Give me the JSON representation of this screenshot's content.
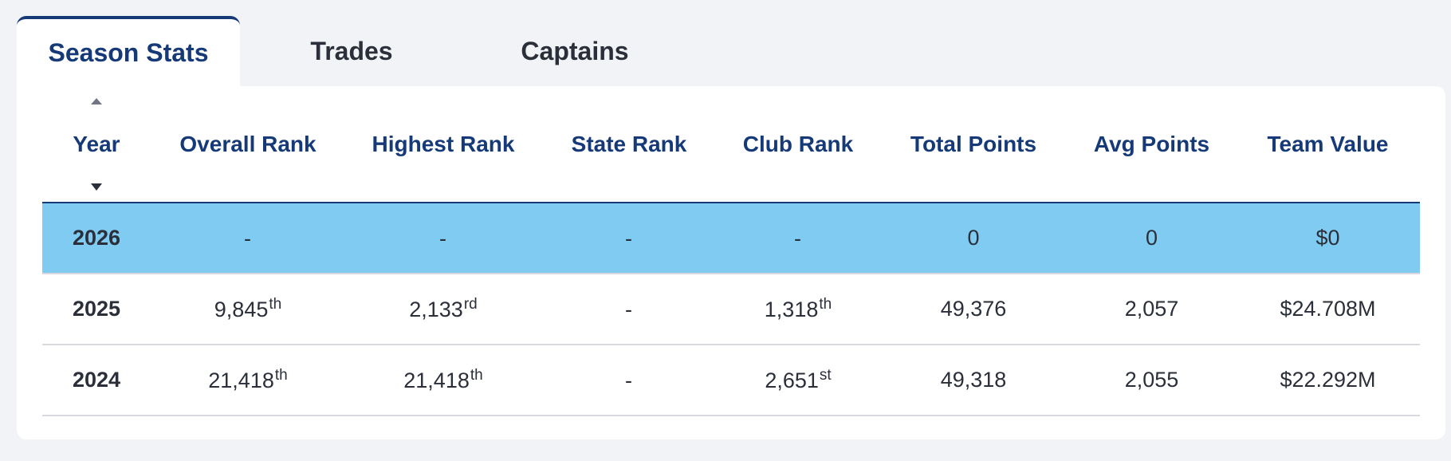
{
  "tabs": [
    {
      "label": "Season Stats",
      "active": true
    },
    {
      "label": "Trades",
      "active": false
    },
    {
      "label": "Captains",
      "active": false
    }
  ],
  "table": {
    "headers": [
      "Year",
      "Overall Rank",
      "Highest Rank",
      "State Rank",
      "Club Rank",
      "Total Points",
      "Avg Points",
      "Team Value"
    ],
    "sort": {
      "column": "Year",
      "up_icon": "sort-up-icon",
      "down_icon": "sort-down-icon"
    },
    "highlight_color": "#7fcbf1",
    "rows": [
      {
        "year": "2026",
        "overall": {
          "value": "-",
          "suffix": ""
        },
        "highest": {
          "value": "-",
          "suffix": ""
        },
        "state": {
          "value": "-",
          "suffix": ""
        },
        "club": {
          "value": "-",
          "suffix": ""
        },
        "total_points": "0",
        "avg_points": "0",
        "team_value": "$0"
      },
      {
        "year": "2025",
        "overall": {
          "value": "9,845",
          "suffix": "th"
        },
        "highest": {
          "value": "2,133",
          "suffix": "rd"
        },
        "state": {
          "value": "-",
          "suffix": ""
        },
        "club": {
          "value": "1,318",
          "suffix": "th"
        },
        "total_points": "49,376",
        "avg_points": "2,057",
        "team_value": "$24.708M"
      },
      {
        "year": "2024",
        "overall": {
          "value": "21,418",
          "suffix": "th"
        },
        "highest": {
          "value": "21,418",
          "suffix": "th"
        },
        "state": {
          "value": "-",
          "suffix": ""
        },
        "club": {
          "value": "2,651",
          "suffix": "st"
        },
        "total_points": "49,318",
        "avg_points": "2,055",
        "team_value": "$22.292M"
      }
    ]
  }
}
